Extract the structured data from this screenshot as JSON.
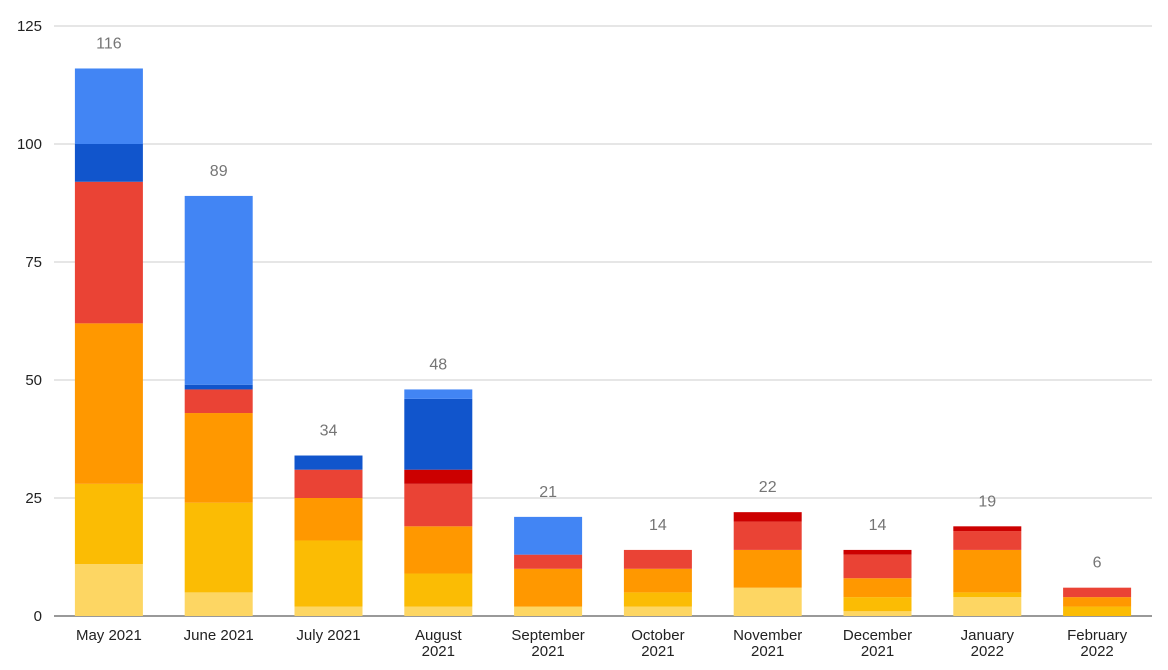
{
  "chart_data": {
    "type": "bar",
    "stacked": true,
    "title": "",
    "xlabel": "",
    "ylabel": "",
    "ylim": [
      0,
      125
    ],
    "yticks": [
      0,
      25,
      50,
      75,
      100,
      125
    ],
    "grid": true,
    "legend": "none",
    "categories": [
      [
        "May 2021"
      ],
      [
        "June 2021"
      ],
      [
        "July 2021"
      ],
      [
        "August",
        "2021"
      ],
      [
        "September",
        "2021"
      ],
      [
        "October",
        "2021"
      ],
      [
        "November",
        "2021"
      ],
      [
        "December",
        "2021"
      ],
      [
        "January",
        "2022"
      ],
      [
        "February",
        "2022"
      ]
    ],
    "totals": [
      "116",
      "89",
      "34",
      "48",
      "21",
      "14",
      "22",
      "14",
      "19",
      "6"
    ],
    "series": [
      {
        "color": "#fdd663",
        "values": [
          11,
          5,
          2,
          2,
          2,
          2,
          6,
          1,
          4,
          0
        ]
      },
      {
        "color": "#fbbc04",
        "values": [
          17,
          19,
          14,
          7,
          0,
          3,
          0,
          3,
          1,
          2
        ]
      },
      {
        "color": "#ff9800",
        "values": [
          34,
          19,
          9,
          10,
          8,
          5,
          8,
          4,
          9,
          2
        ]
      },
      {
        "color": "#ea4335",
        "values": [
          30,
          5,
          6,
          9,
          3,
          4,
          6,
          5,
          4,
          2
        ]
      },
      {
        "color": "#cc0000",
        "values": [
          0,
          0,
          0,
          3,
          0,
          0,
          2,
          1,
          1,
          0
        ]
      },
      {
        "color": "#1155cc",
        "values": [
          8,
          1,
          3,
          15,
          0,
          0,
          0,
          0,
          0,
          0
        ]
      },
      {
        "color": "#4285f4",
        "values": [
          16,
          40,
          0,
          2,
          8,
          0,
          0,
          0,
          0,
          0
        ]
      }
    ]
  }
}
